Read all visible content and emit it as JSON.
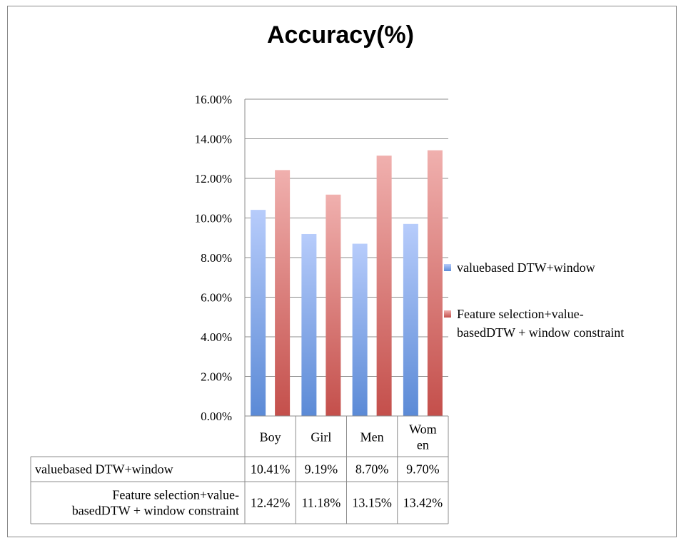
{
  "chart_data": {
    "type": "bar",
    "title": "Accuracy(%)",
    "categories": [
      "Boy",
      "Girl",
      "Men",
      "Women"
    ],
    "category_labels": [
      [
        "Boy"
      ],
      [
        "Girl"
      ],
      [
        "Men"
      ],
      [
        "Wom",
        "en"
      ]
    ],
    "series": [
      {
        "name": "valuebased DTW+window",
        "legend_lines": [
          "valuebased DTW+window"
        ],
        "values": [
          10.41,
          9.19,
          8.7,
          9.7
        ],
        "labels": [
          "10.41%",
          "9.19%",
          "8.70%",
          "9.70%"
        ],
        "color_top": "#b7ccfb",
        "color_bottom": "#5b8ad6"
      },
      {
        "name": "Feature selection+value-basedDTW + window constraint",
        "legend_lines": [
          "Feature selection+value-",
          "basedDTW + window constraint"
        ],
        "values": [
          12.42,
          11.18,
          13.15,
          13.42
        ],
        "labels": [
          "12.42%",
          "11.18%",
          "13.15%",
          "13.42%"
        ],
        "color_top": "#f0b0ae",
        "color_bottom": "#c44f4b"
      }
    ],
    "ylim": [
      0,
      16
    ],
    "yticks": [
      "0.00%",
      "2.00%",
      "4.00%",
      "6.00%",
      "8.00%",
      "10.00%",
      "12.00%",
      "14.00%",
      "16.00%"
    ],
    "grid": true,
    "legend_position": "right",
    "data_table": true
  }
}
